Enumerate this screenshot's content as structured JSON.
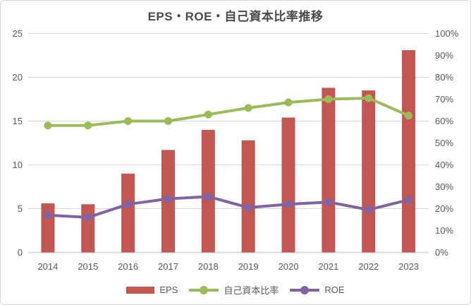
{
  "chart_data": {
    "type": "combo",
    "title": "EPS・ROE・自己資本比率推移",
    "categories": [
      "2014",
      "2015",
      "2016",
      "2017",
      "2018",
      "2019",
      "2020",
      "2021",
      "2022",
      "2023"
    ],
    "series": [
      {
        "name": "EPS",
        "type": "bar",
        "axis": "left",
        "color": "#c35552",
        "values": [
          5.6,
          5.5,
          9.0,
          11.7,
          14.0,
          12.8,
          15.4,
          18.8,
          18.5,
          23.1
        ]
      },
      {
        "name": "自己資本比率",
        "type": "line",
        "axis": "right",
        "color": "#9bbb59",
        "values": [
          58,
          58,
          60,
          60,
          63,
          66,
          68.5,
          70,
          70.5,
          62.5
        ]
      },
      {
        "name": "ROE",
        "type": "line",
        "axis": "right",
        "color": "#8064a2",
        "values": [
          17,
          16,
          22,
          24.5,
          25.5,
          20.5,
          22,
          23,
          19.5,
          24
        ]
      }
    ],
    "left_axis": {
      "min": 0,
      "max": 25,
      "tick_labels": [
        "0",
        "5",
        "10",
        "15",
        "20",
        "25"
      ]
    },
    "right_axis": {
      "min": 0,
      "max": 100,
      "tick_labels": [
        "0%",
        "10%",
        "20%",
        "30%",
        "40%",
        "50%",
        "60%",
        "70%",
        "80%",
        "90%",
        "100%"
      ]
    },
    "grid": true,
    "legend_position": "bottom",
    "colors": {
      "grid": "#d9d9d9",
      "axis_line": "#d9d9d9",
      "tick_text": "#595959",
      "title_text": "#4a4a4a"
    }
  },
  "legend": {
    "items": [
      {
        "label": "EPS",
        "swatch": "bar",
        "color": "#c35552"
      },
      {
        "label": "自己資本比率",
        "swatch": "line",
        "color": "#9bbb59"
      },
      {
        "label": "ROE",
        "swatch": "line",
        "color": "#8064a2"
      }
    ]
  }
}
